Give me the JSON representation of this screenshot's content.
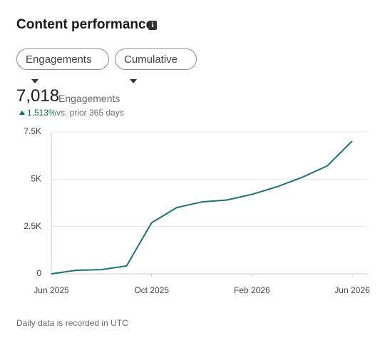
{
  "header": {
    "title": "Content performance"
  },
  "controls": [
    "Engagements",
    "Cumulative"
  ],
  "summary": {
    "value": "7,018",
    "label": "Engagements",
    "change": "1,513%",
    "comparison": "vs. prior 365 days"
  },
  "chart_data": {
    "type": "line",
    "x": [
      "Jun 2025",
      "Jul 2025",
      "Aug 2025",
      "Sep 2025",
      "Oct 2025",
      "Nov 2025",
      "Dec 2025",
      "Jan 2026",
      "Feb 2026",
      "Mar 2026",
      "Apr 2026",
      "May 2026",
      "Jun 2026"
    ],
    "values": [
      0,
      190,
      220,
      420,
      2700,
      3500,
      3800,
      3900,
      4200,
      4600,
      5100,
      5700,
      7018
    ],
    "color": "#1f6f78",
    "ylim": [
      0,
      7500
    ],
    "yticks": [
      0,
      {
        "value": 2500,
        "label": "2.5K"
      },
      {
        "value": 5000,
        "label": "5K"
      },
      {
        "value": 7500,
        "label": "7.5K"
      }
    ],
    "xticks": [
      "Jun 2025",
      "Oct 2025",
      "Feb 2026",
      "Jun 2026"
    ],
    "grid": true
  },
  "footer": "Daily data is recorded in UTC"
}
